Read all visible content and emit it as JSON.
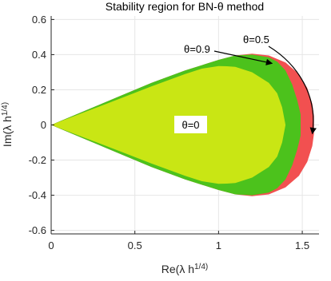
{
  "chart_data": {
    "type": "area",
    "title": "Stability region for BN-θ method",
    "xlabel": "Re(λ h^1/4)",
    "ylabel": "Im(λ h^1/4)",
    "xlim": [
      0,
      1.6
    ],
    "ylim": [
      -0.62,
      0.62
    ],
    "xticks": [
      0,
      0.5,
      1,
      1.5
    ],
    "xtick_labels": [
      "0",
      "0.5",
      "1",
      "1.5"
    ],
    "yticks": [
      -0.6,
      -0.4,
      -0.2,
      0,
      0.2,
      0.4,
      0.6
    ],
    "ytick_labels": [
      "-0.6",
      "-0.4",
      "-0.2",
      "0",
      "0.2",
      "0.4",
      "0.6"
    ],
    "grid": true,
    "colors": {
      "theta_0.5": "#f25050",
      "theta_0.9": "#4cc21c",
      "theta_0": "#c9e614",
      "axis": "#262626",
      "grid": "#e6e6e6"
    },
    "series": [
      {
        "name": "θ=0.5",
        "upper_boundary": {
          "x": [
            0,
            0.2,
            0.4,
            0.6,
            0.8,
            1.0,
            1.1,
            1.2,
            1.3,
            1.4,
            1.48,
            1.53,
            1.56,
            1.57,
            1.57
          ],
          "y": [
            0,
            0.08,
            0.16,
            0.24,
            0.31,
            0.37,
            0.395,
            0.405,
            0.395,
            0.355,
            0.29,
            0.21,
            0.12,
            0.05,
            0
          ]
        }
      },
      {
        "name": "θ=0.9",
        "upper_boundary": {
          "x": [
            0,
            0.2,
            0.4,
            0.6,
            0.8,
            1.0,
            1.1,
            1.2,
            1.3,
            1.35,
            1.4,
            1.44,
            1.47,
            1.49,
            1.49
          ],
          "y": [
            0,
            0.08,
            0.16,
            0.24,
            0.31,
            0.37,
            0.395,
            0.4,
            0.385,
            0.36,
            0.31,
            0.23,
            0.14,
            0.06,
            0
          ]
        }
      },
      {
        "name": "θ=0",
        "upper_boundary": {
          "x": [
            0,
            0.2,
            0.4,
            0.6,
            0.8,
            0.9,
            1.0,
            1.05,
            1.1,
            1.2,
            1.3,
            1.35,
            1.38,
            1.4
          ],
          "y": [
            0,
            0.073,
            0.146,
            0.22,
            0.29,
            0.32,
            0.335,
            0.334,
            0.33,
            0.3,
            0.24,
            0.18,
            0.1,
            0
          ]
        }
      }
    ],
    "annotations": [
      {
        "text": "θ=0.5",
        "arrow_to": [
          1.56,
          -0.05
        ]
      },
      {
        "text": "θ=0.9",
        "arrow_to": [
          1.32,
          0.35
        ]
      },
      {
        "text": "θ=0",
        "boxed": true
      }
    ]
  }
}
